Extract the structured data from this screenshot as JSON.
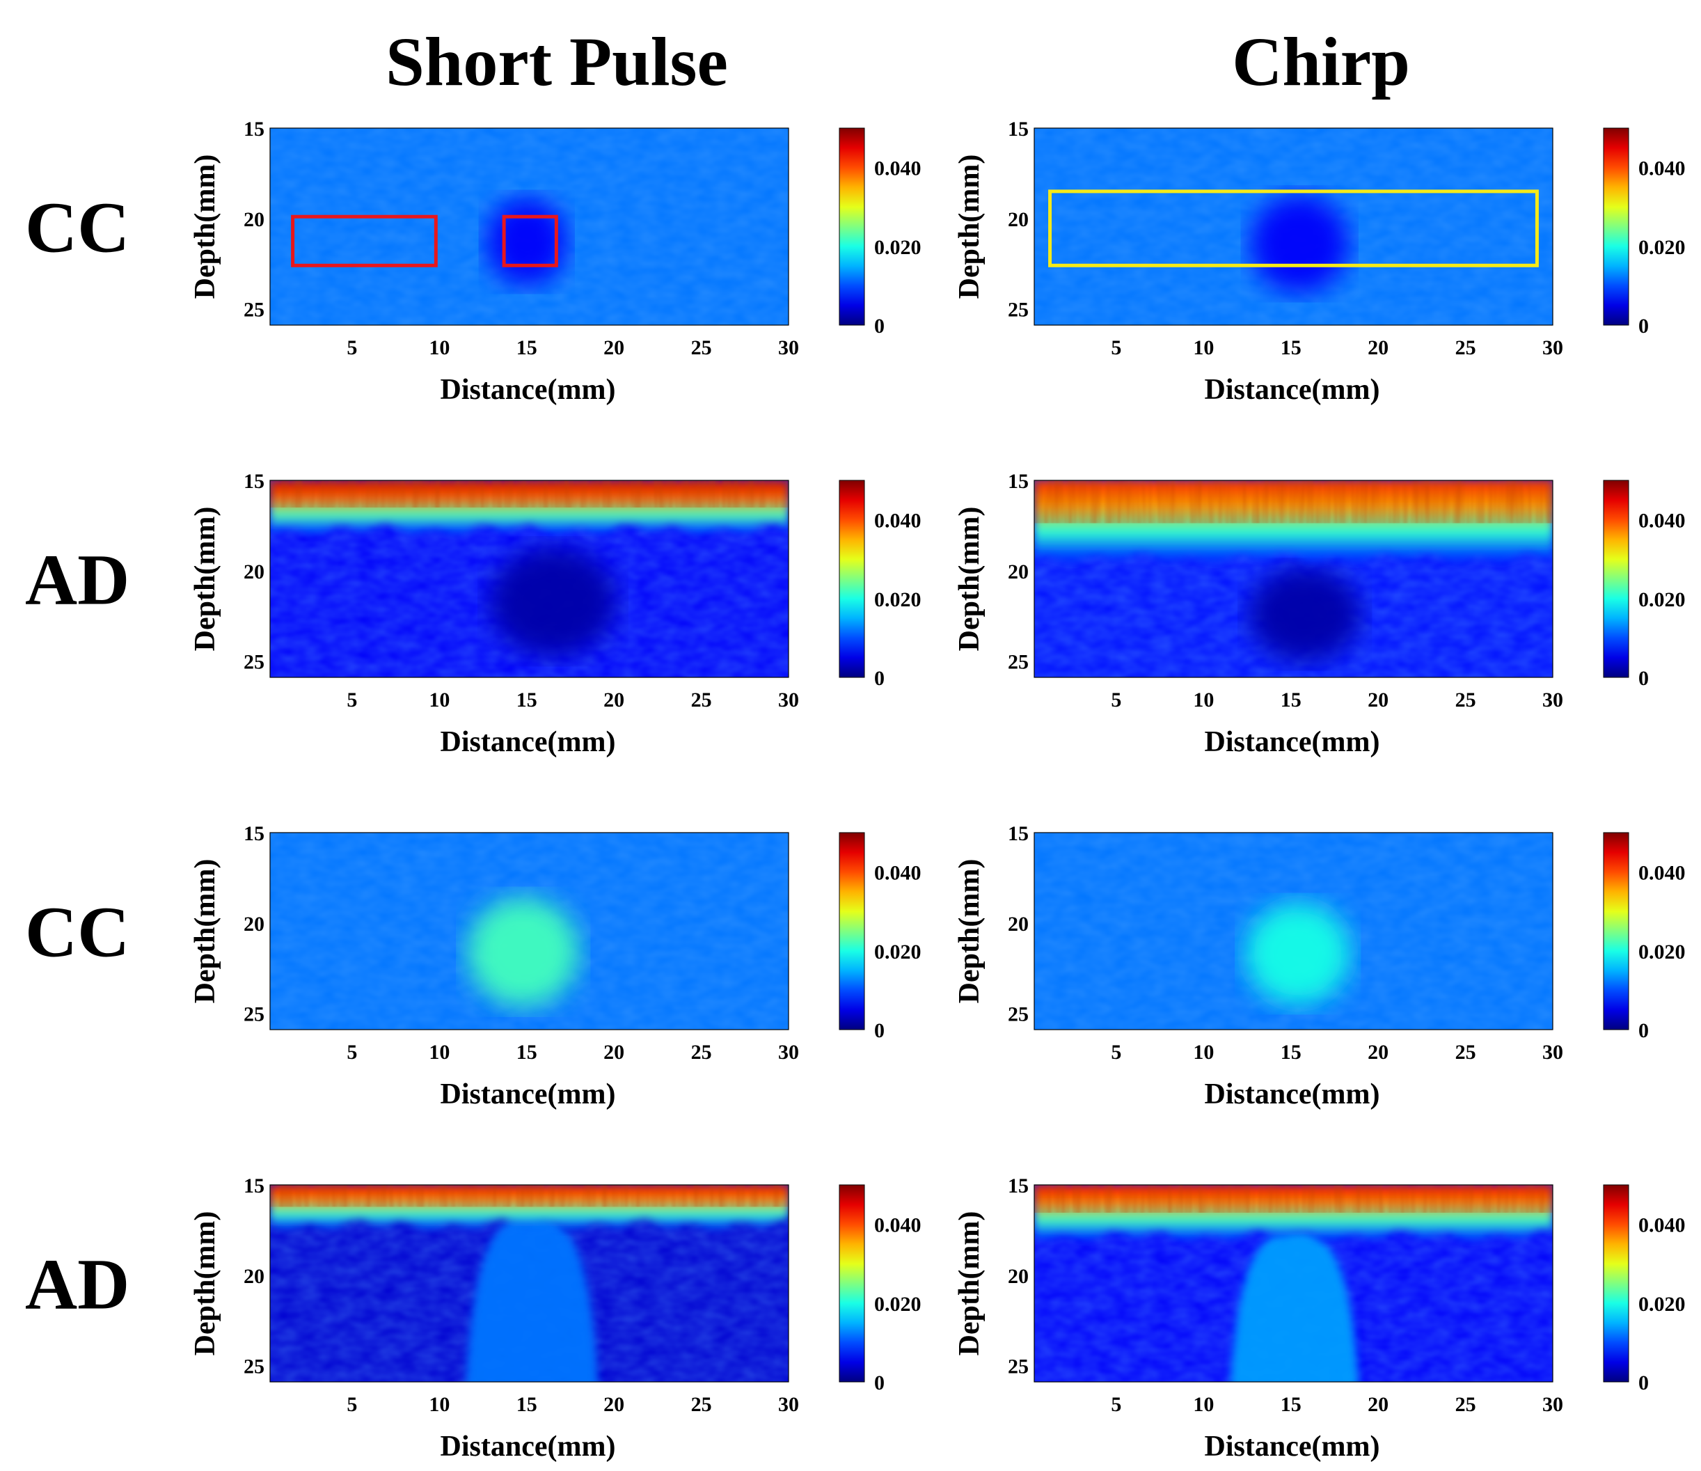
{
  "chart_data": {
    "type": "heatmap",
    "column_titles": [
      "Short Pulse",
      "Chirp"
    ],
    "row_labels": [
      "CC",
      "AD",
      "CC",
      "AD"
    ],
    "xlabel": "Distance(mm)",
    "ylabel": "Depth(mm)",
    "xlim": [
      0.3,
      30
    ],
    "ylim": [
      25.9,
      15
    ],
    "xticks": [
      5,
      10,
      15,
      20,
      25,
      30
    ],
    "yticks": [
      15,
      20,
      25
    ],
    "colorbar": {
      "range": [
        0,
        0.05
      ],
      "ticks": [
        0,
        0.02,
        0.04
      ],
      "tick_labels": [
        "0",
        "0.020",
        "0.040"
      ],
      "colormap": "jet"
    },
    "panels": [
      {
        "row": 0,
        "col": 0,
        "label": "CC",
        "method": "Short Pulse",
        "background_value": 0.012,
        "surface_band": null,
        "inclusion": {
          "cx_mm": 15,
          "cy_mm": 21.3,
          "rx_mm": 2.3,
          "ry_mm": 2.4,
          "value": 0.006,
          "shape": "ellipse"
        },
        "rois": [
          {
            "x": [
              1.6,
              9.8
            ],
            "y": [
              19.9,
              22.6
            ],
            "color": "#e8171b"
          },
          {
            "x": [
              13.7,
              16.7
            ],
            "y": [
              19.9,
              22.6
            ],
            "color": "#e8171b"
          }
        ]
      },
      {
        "row": 0,
        "col": 1,
        "label": "CC",
        "method": "Chirp",
        "background_value": 0.012,
        "surface_band": null,
        "inclusion": {
          "cx_mm": 15.5,
          "cy_mm": 21.4,
          "rx_mm": 2.8,
          "ry_mm": 2.7,
          "value": 0.006,
          "shape": "ellipse"
        },
        "rois": [
          {
            "x": [
              1.2,
              29.1
            ],
            "y": [
              18.5,
              22.6
            ],
            "color": "#f6ea18"
          }
        ]
      },
      {
        "row": 1,
        "col": 0,
        "label": "AD",
        "method": "Short Pulse",
        "background_value": 0.006,
        "surface_band": {
          "top_mm": 15,
          "bottom_mm": 17.7,
          "peak_value": 0.046
        },
        "inclusion": {
          "cx_mm": 16.5,
          "cy_mm": 21.7,
          "rx_mm": 3.6,
          "ry_mm": 3.0,
          "value": 0.002,
          "shape": "ellipse"
        },
        "rois": []
      },
      {
        "row": 1,
        "col": 1,
        "label": "AD",
        "method": "Chirp",
        "background_value": 0.007,
        "surface_band": {
          "top_mm": 15,
          "bottom_mm": 19.3,
          "peak_value": 0.042
        },
        "inclusion": {
          "cx_mm": 15.8,
          "cy_mm": 22.4,
          "rx_mm": 3.2,
          "ry_mm": 2.6,
          "value": 0.002,
          "shape": "ellipse"
        },
        "rois": []
      },
      {
        "row": 2,
        "col": 0,
        "label": "CC",
        "method": "Short Pulse",
        "background_value": 0.012,
        "surface_band": null,
        "inclusion": {
          "cx_mm": 14.8,
          "cy_mm": 21.6,
          "rx_mm": 3.2,
          "ry_mm": 3.0,
          "value": 0.022,
          "shape": "ellipse"
        },
        "rois": []
      },
      {
        "row": 2,
        "col": 1,
        "label": "CC",
        "method": "Chirp",
        "background_value": 0.012,
        "surface_band": null,
        "inclusion": {
          "cx_mm": 15.4,
          "cy_mm": 21.7,
          "rx_mm": 3.0,
          "ry_mm": 2.8,
          "value": 0.02,
          "shape": "ellipse"
        },
        "rois": []
      },
      {
        "row": 3,
        "col": 0,
        "label": "AD",
        "method": "Short Pulse",
        "background_value": 0.004,
        "surface_band": {
          "top_mm": 15,
          "bottom_mm": 17.2,
          "peak_value": 0.044
        },
        "inclusion": {
          "cx_mm": 15.3,
          "cy_mm": 19.6,
          "rx_mm": 3.3,
          "ry_mm": 6.3,
          "value": 0.012,
          "shape": "dome"
        },
        "rois": []
      },
      {
        "row": 3,
        "col": 1,
        "label": "AD",
        "method": "Chirp",
        "background_value": 0.006,
        "surface_band": {
          "top_mm": 15,
          "bottom_mm": 17.8,
          "peak_value": 0.044
        },
        "inclusion": {
          "cx_mm": 15.2,
          "cy_mm": 20.2,
          "rx_mm": 3.2,
          "ry_mm": 5.7,
          "value": 0.014,
          "shape": "dome"
        },
        "rois": []
      }
    ]
  }
}
